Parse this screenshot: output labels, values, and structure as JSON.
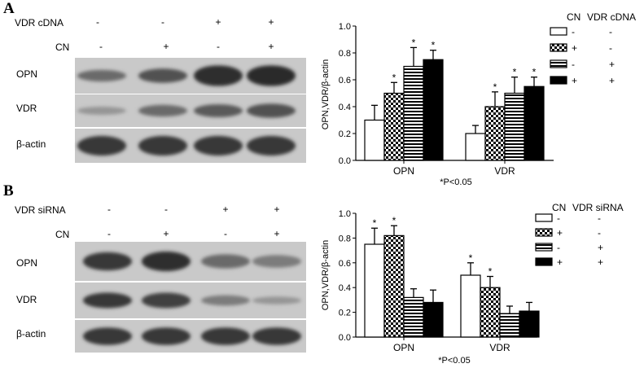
{
  "panel_a": {
    "letter": "A",
    "treatment_rows": [
      {
        "label": "VDR cDNA",
        "signs": [
          "-",
          "-",
          "+",
          "+"
        ]
      },
      {
        "label": "CN",
        "signs": [
          "-",
          "+",
          "-",
          "+"
        ]
      }
    ],
    "blots": [
      {
        "label": "OPN",
        "intensity": [
          0.55,
          0.7,
          0.9,
          0.92
        ],
        "thickness": [
          0.45,
          0.55,
          0.8,
          0.8
        ]
      },
      {
        "label": "VDR",
        "intensity": [
          0.3,
          0.55,
          0.65,
          0.7
        ],
        "thickness": [
          0.35,
          0.5,
          0.55,
          0.6
        ]
      },
      {
        "label": "β-actin",
        "intensity": [
          0.85,
          0.85,
          0.85,
          0.85
        ],
        "thickness": [
          0.8,
          0.8,
          0.8,
          0.8
        ]
      }
    ]
  },
  "panel_b": {
    "letter": "B",
    "treatment_rows": [
      {
        "label": "VDR siRNA",
        "signs": [
          "-",
          "-",
          "+",
          "+"
        ]
      },
      {
        "label": "CN",
        "signs": [
          "-",
          "+",
          "-",
          "+"
        ]
      }
    ],
    "blots": [
      {
        "label": "OPN",
        "intensity": [
          0.85,
          0.9,
          0.55,
          0.45
        ],
        "thickness": [
          0.65,
          0.7,
          0.5,
          0.45
        ]
      },
      {
        "label": "VDR",
        "intensity": [
          0.85,
          0.8,
          0.45,
          0.3
        ],
        "thickness": [
          0.6,
          0.6,
          0.4,
          0.3
        ]
      },
      {
        "label": "β-actin",
        "intensity": [
          0.85,
          0.85,
          0.85,
          0.85
        ],
        "thickness": [
          0.75,
          0.75,
          0.75,
          0.75
        ]
      }
    ]
  },
  "chart_data": [
    {
      "type": "bar",
      "panel": "A",
      "ylabel": "OPN,VDR/β-actin",
      "xlabel": "",
      "ylim": [
        0,
        1.0
      ],
      "yticks": [
        "0.0",
        "0.2",
        "0.4",
        "0.6",
        "0.8",
        "1.0"
      ],
      "categories": [
        "OPN",
        "VDR"
      ],
      "legend_headers": [
        "CN",
        "VDR cDNA"
      ],
      "series": [
        {
          "pattern": "white",
          "signs": [
            "-",
            "-"
          ],
          "values": [
            0.3,
            0.2
          ],
          "errors": [
            0.11,
            0.06
          ],
          "significant": [
            false,
            false
          ]
        },
        {
          "pattern": "checker",
          "signs": [
            "+",
            "-"
          ],
          "values": [
            0.5,
            0.4
          ],
          "errors": [
            0.08,
            0.11
          ],
          "significant": [
            true,
            true
          ]
        },
        {
          "pattern": "hstripe",
          "signs": [
            "-",
            "+"
          ],
          "values": [
            0.7,
            0.5
          ],
          "errors": [
            0.14,
            0.12
          ],
          "significant": [
            true,
            true
          ]
        },
        {
          "pattern": "black",
          "signs": [
            "+",
            "+"
          ],
          "values": [
            0.75,
            0.55
          ],
          "errors": [
            0.07,
            0.07
          ],
          "significant": [
            true,
            true
          ]
        }
      ],
      "note": "*P<0.05",
      "legend_position": "right"
    },
    {
      "type": "bar",
      "panel": "B",
      "ylabel": "OPN,VDR/β-actin",
      "xlabel": "",
      "ylim": [
        0,
        1.0
      ],
      "yticks": [
        "0.0",
        "0.2",
        "0.4",
        "0.6",
        "0.8",
        "1.0"
      ],
      "categories": [
        "OPN",
        "VDR"
      ],
      "legend_headers": [
        "CN",
        "VDR siRNA"
      ],
      "series": [
        {
          "pattern": "white",
          "signs": [
            "-",
            "-"
          ],
          "values": [
            0.75,
            0.5
          ],
          "errors": [
            0.13,
            0.1
          ],
          "significant": [
            true,
            true
          ]
        },
        {
          "pattern": "checker",
          "signs": [
            "+",
            "-"
          ],
          "values": [
            0.82,
            0.4
          ],
          "errors": [
            0.08,
            0.09
          ],
          "significant": [
            true,
            true
          ]
        },
        {
          "pattern": "hstripe",
          "signs": [
            "-",
            "+"
          ],
          "values": [
            0.32,
            0.19
          ],
          "errors": [
            0.07,
            0.06
          ],
          "significant": [
            false,
            false
          ]
        },
        {
          "pattern": "black",
          "signs": [
            "+",
            "+"
          ],
          "values": [
            0.28,
            0.21
          ],
          "errors": [
            0.1,
            0.07
          ],
          "significant": [
            false,
            false
          ]
        }
      ],
      "note": "*P<0.05",
      "legend_position": "right"
    }
  ]
}
